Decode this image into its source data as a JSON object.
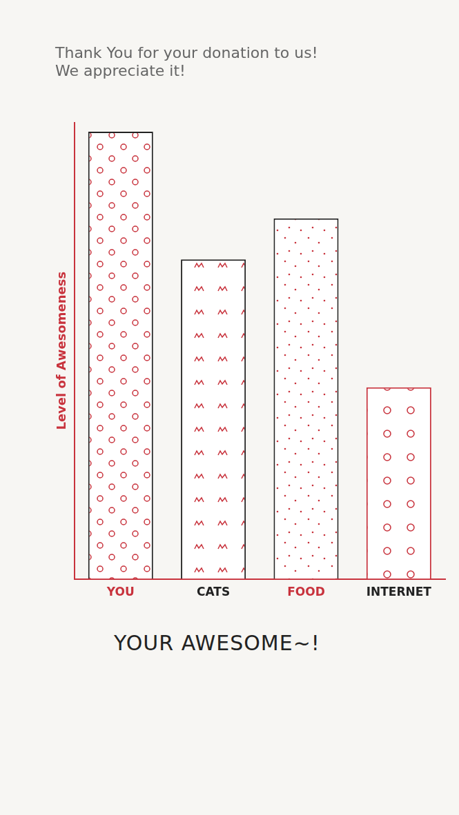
{
  "chart_data": {
    "type": "bar",
    "title": [
      "Thank You for your donation to us!",
      "We appreciate it!"
    ],
    "y_label": "Level of Awesomeness",
    "categories": [
      "YOU",
      "CATS",
      "FOOD",
      "INTERNET"
    ],
    "values": [
      98,
      70,
      79,
      42
    ],
    "color": "#c8323c",
    "ylim": [
      0,
      100
    ],
    "grid": false,
    "tick_labels": "x",
    "annotation": "YOUR AWESOME~!"
  }
}
